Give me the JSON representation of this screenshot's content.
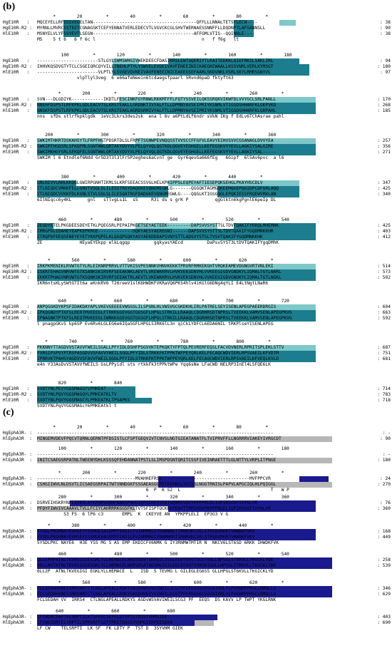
{
  "panels": [
    {
      "label": "(b)",
      "blocks": [
        {
          "ruler": "      *        20         *        40         *        60         *        80         *",
          "rows": [
            {
              "name": "HgE10R   :",
              "seq": "MQCEYELLRFSSSVEGELTAN---------------------------------------QFFLLLNNALTETSYLECN----",
              "end": ": 38"
            },
            {
              "name": "HgE10R-R2 :",
              "seq": "MYRNLLMVRCSSTEETCGNAGSKTCEFYENNATVERLEDECVTLVGVCKCGLSHVTWERNAESSNNFFLLDQDNPTLAFSANNSLL",
              "end": ": 90"
            },
            {
              "name": "HlE10R   :",
              "seq": "MSNYELVLYFSSVEVTLSEGN--------------------------------------AFFGMLVTIS--QQINNLE----",
              "end": ": 38"
            }
          ],
          "cons": "M5    5 t 6   6 f 6c l                                        n   f f6g   lt"
        },
        {
          "ruler": "         100         *        120         *        140         *        160         *        180",
          "rows": [
            {
              "name": "HgE10R   :",
              "seq": "-----------------------STLGYLSWMSWHGIVWEKDEECFDASIKRSLEWTGQERIYTLRAITEDKKLQIEFRKSLSAKLIRL",
              "end": ": 94"
            },
            {
              "name": "HgE10R-R2 :",
              "seq": "IHHVKQSDVGTYTCLCSGEIQRCQYVILLTNEHLPTYLYSWVELEVDEIVAVFENEEINICKAEGKEWAALLKSSVNRLVERLKYMSGT",
              "end": ": 180"
            },
            {
              "name": "HlE10R   :",
              "seq": "-----------------------VLPTLYLSVGEVQVNEIVAVFENEEINICEAEEGSEFAARLSKDVNKLVSRLSKYLRMRSGNYVL",
              "end": ": 97"
            }
          ],
          "cons": "               vlpTlyl3veg  6 e66afeNeein6tcdaegsfpaarl 5Rvnd6paD fktyft63"
        },
        {
          "ruler": "        *        200         *        220         *        240         *        260         *",
          "rows": [
            {
              "name": "HgE10R   :",
              "seq": "SVN---DLGDIYK------------IKDTLFESCINKFGYRNWLRKKMTFFLFQTYSSVEILQKSSRQKVIKWFDLVVYGCLSRLPANLL",
              "end": ": 170"
            },
            {
              "name": "HgE10R-R2 :",
              "seq": "NNEHFDSPSTLRFKPKLGDLEACVTSLKRSTEAKLLGRDNKTIVYALFTLLDPMNYAVSEIPRIYKSNMLVTIGSDSHHARFKLGKPVKD",
              "end": ": 268"
            },
            {
              "name": "HlE10R   :",
              "seq": "NNSKFDSPSTLRFKPKLGDLEACVTSLKRSTEAKLAGRDSRMIVYALFTLLDPMNYAVSEIPRIYKSNMLVTIGSDSHHARFKLGRPAHL",
              "end": ": 185"
            }
          ],
          "cons": "nns  sfDs stlrfkpklgdk  ieVc3Lkrs3des2sk  ena l 6v a6PtLdLf6ndr sVkN IKg f EdLv6TChAsrae pahl"
        },
        {
          "ruler": "   200         *        300         *        320         *        340         *        360",
          "rows": [
            {
              "name": "HgE10R   :",
              "seq": "SWKIMTHKRTDSKAHSYTLFRPFHGTPDSRTDLSLFRPFTSGNWPEVNQQSSTVVSCCFFGFVLEAVYEIHVSVVCGSANAGLDVVYEA",
              "end": ": 257"
            },
            {
              "name": "HgE10R-R2 :",
              "seq": "SWKIMTHGQSRLSFKQFMLSGNTWWLQRTAKYDVYVLPELQYVQLQGTKDLQGVEYEGHGELLKEFEGSKVYYEVLLAGKIYSALGIRE",
              "end": ": 356"
            },
            {
              "name": "HlE10R   :",
              "seq": "SWKIMKHGYSRLSFKQFELSGNTWWLQRTAKYDVYVLPELQYVQLQGTKDLQGVEYEGHGELLKEFEGSKVYYEVLLAGKIYSAL-----",
              "end": ": 271"
            }
          ],
          "cons": "SWKIM l 6 Etndlef6Ndd Gr5D3T3l3lFr5P2eghes6aCvnT ge  Gyr6qevGa666fEg   6Gipf  6l5Av6pvc  a l6"
        },
        {
          "ruler": "         380         *        400         *        420         *        440         *",
          "rows": [
            {
              "name": "HgE10R   :",
              "seq": "GNLNIVVLRHLKKQGLGWIRPGNHTIKMLSLKRFSEEACSSVGLHELKPKIPPSLEQPEYAFTIESEPQKSEHGLPKAYHSCDLV",
              "end": ": 347"
            },
            {
              "name": "HgE10R-R2 :",
              "seq": "ITLNIQDCVMKKFELLGNVTVSQLSLILESSTRGYDAQGKEVQNGMEGWLG-------QGGQKTAGMGQKEEMQGEPQGIDPCDFGRLAQQ",
              "end": ": 425"
            },
            {
              "name": "HlE10R   :",
              "seq": "ITLNIQDCVVKKFDLKGNLSTVLSQLSLILESQATRGFDADGKEVQNGMEGWLG----QQGLKTIGSGQGLEPQKIESSFRQEWVRKLAN",
              "end": ": 340"
            }
          ],
          "cons": "6IlNIqcc6y4KL      gnl   sTlvgLs1L  sS     R3i ds s grK P          qgGlktn6kgPgnlE6peIp DL"
        },
        {
          "ruler": "        460         *        480         *        500         *        520         *        540",
          "rows": [
            {
              "name": "HgE10R   :",
              "seq": "ZEGDYETELPKGDEESDEYETKLPQEGSRLPEPAIPKGETSEYAETEEK---------DAPSVVSYSTTSLTDVTQAKIFYRRQLMHEMHK",
              "end": ": 425"
            },
            {
              "name": "HgE10R-R2 :",
              "seq": "IMRGPDLEDAHEYEAPKEPKRGE-------------GQKYAESYAEREGNI------DAPSVVSYSTTSLTDVTQAKIFYGQDMNKKHR",
              "end": ": 403"
            },
            {
              "name": "HlE10R   :",
              "seq": "ITRQPDFEEQSENEYEYETYKKPQPELKLQGQPGQKYASYAEKDDDAPSVNYSTTLADSVYSTSLTVSVTQAKIFYGQDMNKKHK",
              "end": ": 412"
            }
          ],
          "cons": "ZE              HEyaEYEkpp elkLqgqp         gqkyasYAEcd         DaPsv5YST3LtDVTQAKIFYgqDMhK"
        },
        {
          "ruler": "    *        560         *        580         *        600         *        620         *",
          "rows": [
            {
              "name": "HgE10R   :",
              "seq": "IRKPKMENIKLRVWTGTYLRLEIKNRPRRVLVTTVKISVPESNNKVHNVKEKKTPRVRFRMKEKGHTVRQKEAMEVDGNGVRTVNLEKI",
              "end": ": 514"
            },
            {
              "name": "HgE10R-R2 :",
              "seq": "ISKRTEHAGVNRVWTGTKSANKSKIRVRFSEEAKNKLAEVTLVKEWKKRVLHVKVEKSDNVHLVVKEEGIGDVGNDKYLIQMALTGTLNARL",
              "end": ": 573"
            },
            {
              "name": "HlE10R   :",
              "seq": "IKKRTPHAGVNRVWTGTKSQNKSKIRVRFSEEAKTRLAEVTLVKEWKKRVLHVKVEKSDNVHLVVKEEGIGDVGNDKYLIQMALTGTLNGKL",
              "end": ": 502"
            }
          ],
          "cons": "IKR6ntsKLySWtGTIt6a eKnkRV6 T26reeV1slK6HWDKFVKRaVQ6PKS4hlv4iKGlG6DNg4qYLI E4LtNgtLNaR6"
        },
        {
          "ruler": "        640         *        660         *        680         *        700         *        720",
          "rows": [
            {
              "name": "HgE10R   :",
              "seq": "ANPQGGKDYKPSFIDAKDAYAPLVKEVGEEEEVWGGSLILSPGNLHLVWSVGCGKDKHLIRLPATRELSEYISENLAPEGPAEERDRGIS",
              "end": ": 604"
            },
            {
              "name": "HgE10R-R2 :",
              "seq": "IPKQGNDYPTKFSLRERTMVEEEGLFTRKRGGEVGGTGGSGFLHPGLSTRKILLRAAQLCDGRHRSDTNPRSLTVEEKKLVAMVSENLAPEGPKVG",
              "end": ": 663"
            },
            {
              "name": "HlE10R   :",
              "seq": "IPNAGNKTPTKFSLREQTMVKEEGLIWRKKGGEVGGTGGSGFLHPGLSTRKILLRAAQLCDGRHRSDTNPRSLTVEEKKLVAMVSENLAPEGPKVG",
              "end": ": 592"
            }
          ],
          "cons": "l pnagpGKvS kp6SP Ev6Rv6LGLEG6e6IQaSGFLHPGLS3RK6lL3n qiCkLYDFCL6EDA6NIL tRKPlseYISENLAPEG"
        },
        {
          "ruler": "   *        740         *        760         *        780         *        800         *",
          "rows": [
            {
              "name": "HgE10R   :",
              "seq": "PKKNNYTTAGDVVSTAVVFWEILSGALLPFYIDLDSHFPSGVVKTEPKQKTYFPTQLPEVRERFEQSLFACVDVNERLRPRITSPLEKLSTTV",
              "end": ": 687"
            },
            {
              "name": "HgE10R-R2 :",
              "seq": "FVRSIPSPVYPTRSPASGDVVSFAVVYWEILSGGLPFYIDLSTRKKFKTPPKTWFPEYQRLKELFECAQCWDVIERLRPSVAEILKFVDTM",
              "end": ": 751"
            },
            {
              "name": "HlE10R   :",
              "seq": "IPRRVKTPAHSYAGDVVSFAVVFWEILSGGLPFYIDLSTRKKFKTPPKTWFPEYQRLKELFECAQCWDVIERLRPSVAEILKFVEQLKVLD",
              "end": ": 681"
            }
          ],
          "cons": "e4n Y33AsDvVSTAVVfWEILS GsLPPyidl sts rtkkFk3tPPktWPe Yqq6sNe LFaCWD NELRP3InEl4LSFQE6LK"
        },
        {
          "ruler": "        820         *        840",
          "rows": [
            {
              "name": "HgE10R   :",
              "seq": "SVDTYNLPEVYGGSMAGGYVPMKEAT---",
              "end": ": 714"
            },
            {
              "name": "HgE10R-R2 :",
              "seq": "SVDTYNLPQVYGGSMAGQYLPMKEATKLTV",
              "end": ": 783"
            },
            {
              "name": "HlE10R   :",
              "seq": "SVDTYNLPQVYGGSMAGCYLPMKEATKLTPGAPKS",
              "end": ": 718"
            }
          ],
          "cons": "SVDTYNLPqVYGGSMAGcY6PMKEAtkl t"
        }
      ]
    },
    {
      "label": "(c)",
      "blocks": [
        {
          "ruler": "      *        20         *        40         *        60         *        80         *",
          "rows": [
            {
              "name": "HgEphA3R- :",
              "seq": "-----------------------------------------------------------------------------------------",
              "end": ": -"
            },
            {
              "name": "HlEphA3R  :",
              "seq": "MINGEMVDEVFPQCVTQRNLQERNTPFDSISTLCFSPTGEQVIVTCNVSLNGTGIEATANATFLTVIPRVFFLLNGRRRVIAKEYIVRGCDT",
              "end": ": 90"
            }
          ],
          "cons": ""
        },
        {
          "ruler": "        100         *        120         *        140         *        160         *        180",
          "rows": [
            {
              "name": "HgEphA3R- :",
              "seq": "-----------------------------------------------------------------------------------------",
              "end": ": -"
            },
            {
              "name": "HlEphA3R  :",
              "seq": "INITCSAEGSRPATNLTWEENYDHLKSSSQFEHDANNATPSTLSLIMSPDSNTQRITCSSFIVEINRAETTTLGLNTTYLVRPLITPNGE",
              "end": ": 180"
            }
          ],
          "cons": ""
        },
        {
          "ruler": "        *        200         *        220         *        240         *        260         *",
          "rows": [
            {
              "name": "HgEphA3R- :",
              "seq": "-------------------------------------MVAHHEFRSL---------------------------------MVFPPCVR",
              "end": ": 24"
            },
            {
              "name": "HlEphA3R  :",
              "seq": "CSHGIIWVLNLDSVTLICSAEGSRPAITWTVNNDGKFSSGAEASGGPDTKENNSLVVCSSLNGGTRNISLPAPVLAPGCIQLHLPQIGGL",
              "end": ": 270"
            }
          ],
          "cons": "                                         6  P  K S2  L                                  T   W P"
        },
        {
          "ruler": "        280         *        300         *        320         *        340         *        360",
          "rows": [
            {
              "name": "HgEphA3R- :",
              "seq": "DSRVEIHSKRYNPLSVKELAFEPQRVGRNPNNEGPAGGIQPQCKEVYEAYGQNRSVDVYKPPPRLELIGPIRSGGFIVYGLVR",
              "end": ": 76"
            },
            {
              "name": "HlEphA3R  :",
              "seq": "PFDYFIWVIVCAAAVLTVLLFCIYCAHRRRKGGSFKLTVTSFISPTQCKEVYEAYTTPRSVDVYKPPPRLELIGPIRSGGFIVYGLVR",
              "end": ": 360"
            }
          ],
          "cons": "          S3 FS  6 lP6 c3       EMPL  K  CKEYVE AN  YPKPPLELI  EP3G3 V G"
        },
        {
          "ruler": "    *        380         *        400         *        420         *        440         *",
          "rows": [
            {
              "name": "HgEphA3R- :",
              "seq": "YYSDLPRGMNAYEVHSEYYSSMGESASEMPFEKDICFVINMMRGIYRNMWMGTIRNRVKCVELSTRSDVRKRTVHWDKFVKV",
              "end": ": 168"
            },
            {
              "name": "HlEphA3R  :",
              "seq": "YYSDLPKGHNAYEVHSEYYSSMGEVASEMPFEKDICFVINMMRGIYRNMWMGTIRNRVKCVELSTRSDVRKRTVHWDKFVKV",
              "end": ": 449"
            }
          ],
          "cons": "5YSDLPKC NAYE6  H3E YSS MG S AS EMP EKDICFV6NMK G IY3RNMWTMTIR N  NKCV6LST6SD 6RKK IHWDKFVK"
        },
        {
          "ruler": "        460         *        480         *        500         *        520         *        540",
          "rows": [
            {
              "name": "HgEphA3R- :",
              "seq": "GLLLPHPATNLTKVEGIGIESGKLYLLHEMACELHKDSSDSTSKMGGLIGGLEGVTVVSTSCGTSGLLNPSGLSTRKVLLTKGCKLYDE",
              "end": ": 258"
            },
            {
              "name": "HlEphA3R  :",
              "seq": "VRLLNVTATNLTKVEGIGIESGKLYLLHEMACELHKRVDSATAEVMGIGILEGLEGVGTVVRSDIGGLLNPSGLSTRKVLLTKGCKLYDE",
              "end": ": 539"
            }
          ],
          "cons": "6LL2P  ATNLTKVEGIGI EGKLYLLHEMACE  L   ISD  S TEVMG L GILEGLEG6S5 GLLHPGLST6KVLLTKGICKLYD"
        },
        {
          "ruler": "        *        560         *        580         *        600         *        620         *",
          "rows": [
            {
              "name": "HgEphA3R- :",
              "seq": "FCLSEDAHVNEIVRRSHRTCTLNGLAPEALLRDKYSASDVWSVVVIWEILSCGTPFEPEGSGCEGVAIKNLYLPVKWMPPRGCLRMQLLG",
              "end": ": 346"
            },
            {
              "name": "HlEphA3R  :",
              "seq": "FCLSEDAHVNEIVRRSHRTCTLNGLAPEALLRDKYSASDVWSVVVIWEILSCGTPFEPEGSGCEGVAIKNLYLPVKWMPPRGCLRMQLLG",
              "end": ": 629"
            }
          ],
          "cons": "FCLSEDAH VV  IRRS4  CTLNGLAPEALLRDKYS ASDvWSVAVIWEILSCG3 PF  EEQS  DS KAVV LP TWPT YKGLRNK"
        },
        {
          "ruler": "       640         *        660         *        680",
          "rows": [
            {
              "name": "HgEphA3R- :",
              "seq": "LFCWDRCPAPTELSRPTILKTSFERCSEFFLDTYPTSTDSSYVHMGIEK-----",
              "end": ": 403"
            },
            {
              "name": "HlEphA3R  :",
              "seq": "LFCWDSDRTELSRPTILSPRSRFFLDTYPDSTDASSYVHMGIEKPEESDKA",
              "end": ": 690"
            }
          ],
          "cons": "LF CW    TELSRPTI  LK SF  FK LDTY P  TST D  3SYVHM GIEK"
        }
      ]
    }
  ],
  "colors": {
    "dark_teal": "#1b7d8e",
    "light_teal": "#7ec8c9",
    "navy": "#1a1a8f",
    "gray": "#b7b7b7"
  }
}
